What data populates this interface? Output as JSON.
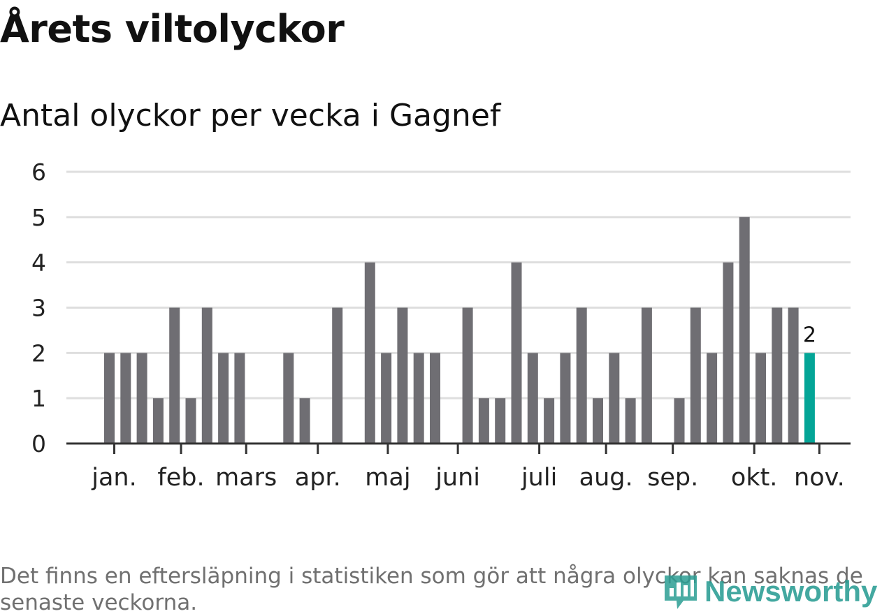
{
  "header": {
    "title": "Årets viltolyckor",
    "subtitle": "Antal olyckor per vecka i Gagnef"
  },
  "chart_data": {
    "type": "bar",
    "title": "Årets viltolyckor",
    "subtitle": "Antal olyckor per vecka i Gagnef",
    "xlabel": "",
    "ylabel": "",
    "ylim": [
      0,
      6
    ],
    "yticks": [
      0,
      1,
      2,
      3,
      4,
      5,
      6
    ],
    "grid": true,
    "values": [
      2,
      2,
      2,
      1,
      3,
      1,
      3,
      2,
      2,
      0,
      0,
      2,
      1,
      0,
      3,
      0,
      4,
      2,
      3,
      2,
      2,
      0,
      3,
      1,
      1,
      4,
      2,
      1,
      2,
      3,
      1,
      2,
      1,
      3,
      0,
      1,
      3,
      2,
      4,
      5,
      2,
      3,
      3,
      2
    ],
    "highlight_index": 43,
    "highlight_label": "2",
    "month_labels": [
      {
        "label": "jan.",
        "week_index": 0.3
      },
      {
        "label": "feb.",
        "week_index": 4.4
      },
      {
        "label": "mars",
        "week_index": 8.4
      },
      {
        "label": "apr.",
        "week_index": 12.8
      },
      {
        "label": "maj",
        "week_index": 17.1
      },
      {
        "label": "juni",
        "week_index": 21.4
      },
      {
        "label": "juli",
        "week_index": 26.4
      },
      {
        "label": "aug.",
        "week_index": 30.5
      },
      {
        "label": "sep.",
        "week_index": 34.6
      },
      {
        "label": "okt.",
        "week_index": 39.6
      },
      {
        "label": "nov.",
        "week_index": 43.6
      }
    ],
    "colors": {
      "bar": "#6f6e73",
      "highlight": "#04a597",
      "grid": "#dedede",
      "axis": "#333333"
    }
  },
  "footer": {
    "note": "Det finns en eftersläpning i statistiken som gör att några olyckor kan saknas de senaste veckorna.",
    "logo_text": "Newsworthy"
  }
}
